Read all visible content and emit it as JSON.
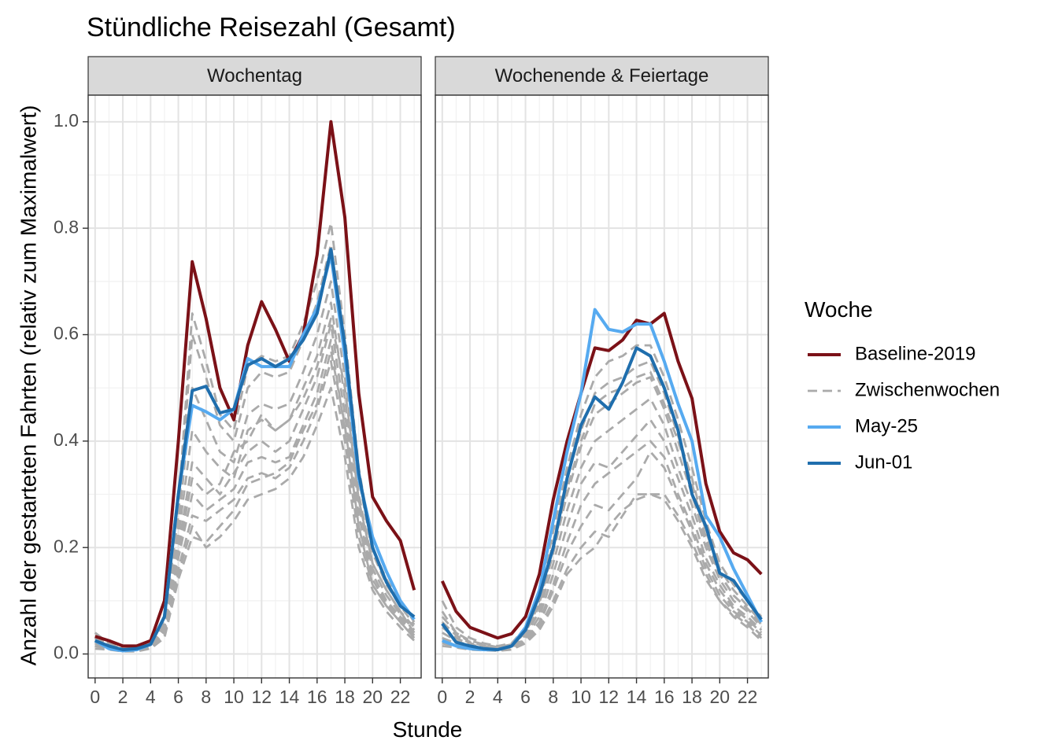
{
  "chart_data": {
    "type": "line",
    "title": "Stündliche Reisezahl (Gesamt)",
    "xlabel": "Stunde",
    "ylabel": "Anzahl der gestarteten Fahrten (relativ zum Maximalwert)",
    "xlim": [
      -0.5,
      23.5
    ],
    "ylim": [
      -0.045,
      1.05
    ],
    "x_ticks": [
      0,
      2,
      4,
      6,
      8,
      10,
      12,
      14,
      16,
      18,
      20,
      22
    ],
    "x_tick_labels": [
      "0",
      "2",
      "4",
      "6",
      "8",
      "10",
      "12",
      "14",
      "16",
      "18",
      "20",
      "22"
    ],
    "y_ticks": [
      0.0,
      0.2,
      0.4,
      0.6,
      0.8,
      1.0
    ],
    "y_tick_labels": [
      "0.0",
      "0.2",
      "0.4",
      "0.6",
      "0.8",
      "1.0"
    ],
    "grid": true,
    "legend": {
      "title": "Woche",
      "position": "right",
      "entries": [
        {
          "name": "Baseline-2019",
          "color": "#7b1117",
          "style": "solid"
        },
        {
          "name": "Zwischenwochen",
          "color": "#aaaaaa",
          "style": "dashed"
        },
        {
          "name": "May-25",
          "color": "#56aaf0",
          "style": "solid"
        },
        {
          "name": "Jun-01",
          "color": "#1f6ead",
          "style": "solid"
        }
      ]
    },
    "x": [
      0,
      1,
      2,
      3,
      4,
      5,
      6,
      7,
      8,
      9,
      10,
      11,
      12,
      13,
      14,
      15,
      16,
      17,
      18,
      19,
      20,
      21,
      22,
      23
    ],
    "panels": [
      {
        "label": "Wochentag",
        "series": [
          {
            "name": "Baseline-2019",
            "values": [
              0.033,
              0.025,
              0.015,
              0.015,
              0.025,
              0.1,
              0.4,
              0.737,
              0.63,
              0.5,
              0.44,
              0.58,
              0.662,
              0.61,
              0.55,
              0.6,
              0.75,
              1.0,
              0.82,
              0.49,
              0.295,
              0.25,
              0.213,
              0.12
            ]
          },
          {
            "name": "May-25",
            "values": [
              0.025,
              0.01,
              0.006,
              0.008,
              0.018,
              0.07,
              0.3,
              0.467,
              0.455,
              0.44,
              0.46,
              0.555,
              0.54,
              0.54,
              0.54,
              0.6,
              0.65,
              0.75,
              0.56,
              0.33,
              0.22,
              0.155,
              0.1,
              0.065
            ]
          },
          {
            "name": "Jun-01",
            "values": [
              0.025,
              0.015,
              0.008,
              0.01,
              0.018,
              0.07,
              0.3,
              0.495,
              0.503,
              0.453,
              0.46,
              0.543,
              0.555,
              0.54,
              0.555,
              0.59,
              0.64,
              0.76,
              0.58,
              0.34,
              0.2,
              0.135,
              0.09,
              0.07
            ]
          }
        ],
        "zwischenwochen": [
          [
            0.04,
            0.02,
            0.01,
            0.01,
            0.02,
            0.07,
            0.28,
            0.64,
            0.55,
            0.45,
            0.42,
            0.54,
            0.56,
            0.55,
            0.56,
            0.62,
            0.7,
            0.81,
            0.6,
            0.35,
            0.2,
            0.14,
            0.1,
            0.06
          ],
          [
            0.03,
            0.018,
            0.01,
            0.01,
            0.018,
            0.065,
            0.26,
            0.6,
            0.52,
            0.43,
            0.4,
            0.5,
            0.53,
            0.52,
            0.53,
            0.59,
            0.66,
            0.77,
            0.57,
            0.33,
            0.19,
            0.13,
            0.09,
            0.055
          ],
          [
            0.03,
            0.016,
            0.009,
            0.009,
            0.016,
            0.06,
            0.24,
            0.5,
            0.44,
            0.38,
            0.36,
            0.45,
            0.47,
            0.46,
            0.47,
            0.53,
            0.6,
            0.7,
            0.52,
            0.3,
            0.17,
            0.12,
            0.08,
            0.05
          ],
          [
            0.025,
            0.014,
            0.008,
            0.008,
            0.015,
            0.055,
            0.22,
            0.42,
            0.38,
            0.35,
            0.33,
            0.42,
            0.44,
            0.42,
            0.44,
            0.5,
            0.56,
            0.66,
            0.48,
            0.28,
            0.16,
            0.11,
            0.075,
            0.045
          ],
          [
            0.02,
            0.012,
            0.007,
            0.007,
            0.014,
            0.05,
            0.2,
            0.36,
            0.33,
            0.3,
            0.34,
            0.38,
            0.4,
            0.38,
            0.4,
            0.46,
            0.52,
            0.62,
            0.45,
            0.26,
            0.15,
            0.1,
            0.07,
            0.04
          ],
          [
            0.02,
            0.011,
            0.007,
            0.007,
            0.013,
            0.045,
            0.18,
            0.3,
            0.27,
            0.29,
            0.31,
            0.36,
            0.37,
            0.36,
            0.37,
            0.43,
            0.49,
            0.59,
            0.42,
            0.24,
            0.14,
            0.095,
            0.065,
            0.035
          ],
          [
            0.015,
            0.01,
            0.006,
            0.006,
            0.012,
            0.04,
            0.16,
            0.26,
            0.25,
            0.27,
            0.29,
            0.33,
            0.34,
            0.33,
            0.35,
            0.4,
            0.46,
            0.55,
            0.4,
            0.22,
            0.13,
            0.09,
            0.06,
            0.03
          ],
          [
            0.015,
            0.009,
            0.005,
            0.005,
            0.011,
            0.035,
            0.15,
            0.24,
            0.2,
            0.22,
            0.25,
            0.29,
            0.3,
            0.31,
            0.33,
            0.37,
            0.43,
            0.5,
            0.37,
            0.2,
            0.12,
            0.08,
            0.05,
            0.025
          ],
          [
            0.01,
            0.008,
            0.005,
            0.005,
            0.01,
            0.03,
            0.14,
            0.22,
            0.21,
            0.24,
            0.27,
            0.32,
            0.33,
            0.34,
            0.36,
            0.42,
            0.47,
            0.57,
            0.43,
            0.24,
            0.13,
            0.09,
            0.06,
            0.03
          ],
          [
            0.02,
            0.012,
            0.007,
            0.007,
            0.013,
            0.05,
            0.19,
            0.33,
            0.3,
            0.32,
            0.38,
            0.4,
            0.45,
            0.42,
            0.44,
            0.48,
            0.54,
            0.63,
            0.5,
            0.29,
            0.17,
            0.12,
            0.08,
            0.04
          ]
        ]
      },
      {
        "label": "Wochenende & Feiertage",
        "series": [
          {
            "name": "Baseline-2019",
            "values": [
              0.137,
              0.08,
              0.05,
              0.04,
              0.03,
              0.038,
              0.07,
              0.15,
              0.29,
              0.4,
              0.49,
              0.575,
              0.57,
              0.59,
              0.627,
              0.62,
              0.64,
              0.55,
              0.48,
              0.32,
              0.23,
              0.19,
              0.177,
              0.15
            ]
          },
          {
            "name": "May-25",
            "values": [
              0.025,
              0.015,
              0.01,
              0.008,
              0.008,
              0.015,
              0.05,
              0.12,
              0.25,
              0.38,
              0.49,
              0.647,
              0.61,
              0.605,
              0.62,
              0.62,
              0.55,
              0.47,
              0.4,
              0.26,
              0.22,
              0.16,
              0.11,
              0.06
            ]
          },
          {
            "name": "Jun-01",
            "values": [
              0.057,
              0.022,
              0.015,
              0.01,
              0.008,
              0.015,
              0.045,
              0.11,
              0.2,
              0.33,
              0.43,
              0.483,
              0.46,
              0.51,
              0.575,
              0.56,
              0.5,
              0.42,
              0.3,
              0.24,
              0.152,
              0.138,
              0.1,
              0.065
            ]
          }
        ],
        "zwischenwochen": [
          [
            0.1,
            0.05,
            0.03,
            0.02,
            0.015,
            0.02,
            0.05,
            0.11,
            0.23,
            0.35,
            0.45,
            0.52,
            0.55,
            0.56,
            0.58,
            0.58,
            0.52,
            0.44,
            0.35,
            0.25,
            0.17,
            0.13,
            0.1,
            0.07
          ],
          [
            0.08,
            0.04,
            0.025,
            0.018,
            0.013,
            0.018,
            0.045,
            0.1,
            0.21,
            0.33,
            0.42,
            0.49,
            0.51,
            0.52,
            0.54,
            0.55,
            0.49,
            0.41,
            0.33,
            0.23,
            0.16,
            0.12,
            0.09,
            0.06
          ],
          [
            0.06,
            0.035,
            0.02,
            0.015,
            0.012,
            0.016,
            0.04,
            0.09,
            0.19,
            0.3,
            0.39,
            0.45,
            0.47,
            0.49,
            0.51,
            0.52,
            0.46,
            0.38,
            0.3,
            0.21,
            0.15,
            0.11,
            0.085,
            0.055
          ],
          [
            0.05,
            0.03,
            0.018,
            0.013,
            0.01,
            0.014,
            0.035,
            0.08,
            0.17,
            0.27,
            0.35,
            0.4,
            0.42,
            0.44,
            0.46,
            0.48,
            0.43,
            0.35,
            0.28,
            0.2,
            0.14,
            0.1,
            0.08,
            0.05
          ],
          [
            0.04,
            0.025,
            0.015,
            0.012,
            0.009,
            0.012,
            0.03,
            0.07,
            0.15,
            0.24,
            0.32,
            0.36,
            0.35,
            0.38,
            0.41,
            0.44,
            0.4,
            0.33,
            0.26,
            0.18,
            0.13,
            0.09,
            0.07,
            0.045
          ],
          [
            0.03,
            0.02,
            0.012,
            0.01,
            0.008,
            0.011,
            0.028,
            0.06,
            0.13,
            0.21,
            0.28,
            0.32,
            0.34,
            0.36,
            0.38,
            0.4,
            0.37,
            0.3,
            0.24,
            0.17,
            0.12,
            0.085,
            0.065,
            0.04
          ],
          [
            0.025,
            0.017,
            0.01,
            0.009,
            0.007,
            0.01,
            0.025,
            0.055,
            0.12,
            0.19,
            0.24,
            0.28,
            0.27,
            0.3,
            0.33,
            0.38,
            0.35,
            0.29,
            0.23,
            0.16,
            0.11,
            0.08,
            0.06,
            0.035
          ],
          [
            0.02,
            0.014,
            0.009,
            0.008,
            0.006,
            0.009,
            0.022,
            0.05,
            0.1,
            0.16,
            0.2,
            0.23,
            0.22,
            0.26,
            0.3,
            0.3,
            0.29,
            0.25,
            0.2,
            0.14,
            0.1,
            0.075,
            0.055,
            0.03
          ],
          [
            0.015,
            0.012,
            0.008,
            0.007,
            0.006,
            0.008,
            0.02,
            0.045,
            0.09,
            0.15,
            0.18,
            0.2,
            0.24,
            0.27,
            0.29,
            0.3,
            0.3,
            0.26,
            0.21,
            0.15,
            0.1,
            0.07,
            0.05,
            0.025
          ],
          [
            0.07,
            0.04,
            0.022,
            0.016,
            0.012,
            0.016,
            0.04,
            0.095,
            0.2,
            0.31,
            0.4,
            0.47,
            0.49,
            0.5,
            0.52,
            0.53,
            0.47,
            0.4,
            0.32,
            0.22,
            0.15,
            0.11,
            0.085,
            0.06
          ]
        ]
      }
    ]
  }
}
